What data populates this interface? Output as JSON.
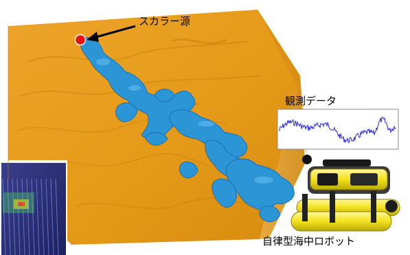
{
  "labels": {
    "scalar_source": "スカラー源",
    "observation_data": "観測データ",
    "autonomous_robot": "自律型海中ロボット"
  },
  "colors": {
    "seabed": "#e59c1b",
    "seabed_shadow": "#c47e0e",
    "plume": "#2c95d6",
    "plume_dark": "#1b6fb0",
    "source_marker": "#e51010",
    "signal": "#2a2ad8",
    "robot_body": "#f2e21c",
    "robot_frame": "#222222"
  },
  "icons": {
    "source": "red-dot-marker",
    "pointer": "black-arrow",
    "robot": "auv-robot",
    "inset": "survey-map-thumbnail"
  }
}
